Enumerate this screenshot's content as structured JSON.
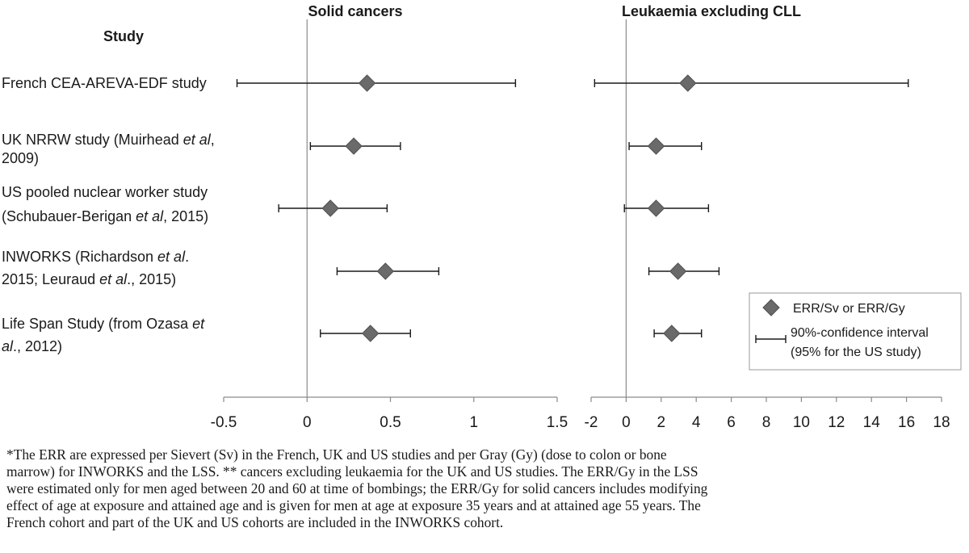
{
  "header": {
    "study_heading": "Study"
  },
  "studies": [
    {
      "lines": [
        "French CEA-AREVA-EDF study"
      ]
    },
    {
      "lines": [
        [
          "UK NRRW study (Muirhead ",
          "et al",
          ","
        ],
        [
          "2009)"
        ]
      ]
    },
    {
      "lines": [
        [
          "US pooled nuclear worker study"
        ],
        [
          "(Schubauer-Berigan ",
          "et al",
          ", 2015)"
        ]
      ]
    },
    {
      "lines": [
        [
          "INWORKS (Richardson ",
          "et al",
          "."
        ],
        [
          "2015; Leuraud ",
          "et al",
          "., 2015)"
        ]
      ]
    },
    {
      "lines": [
        [
          "Life Span Study (from Ozasa ",
          "et",
          ""
        ],
        [
          "",
          "al",
          "., 2012)"
        ]
      ]
    }
  ],
  "legend": {
    "marker_label": "ERR/Sv or ERR/Gy",
    "ci_label_line1": "90%-confidence  interval",
    "ci_label_line2": "(95% for the US study)"
  },
  "chart_data": [
    {
      "type": "forest",
      "title": "Solid cancers",
      "xlim": [
        -0.5,
        1.5
      ],
      "ticks": [
        -0.5,
        0,
        0.5,
        1,
        1.5
      ],
      "tick_labels": [
        "-0.5",
        "0",
        "0.5",
        "1",
        "1.5"
      ],
      "reference_line": 0,
      "points": [
        {
          "study": "French CEA-AREVA-EDF study",
          "estimate": 0.36,
          "lower": -0.42,
          "upper": 1.25
        },
        {
          "study": "UK NRRW study (Muirhead et al, 2009)",
          "estimate": 0.28,
          "lower": 0.02,
          "upper": 0.56
        },
        {
          "study": "US pooled nuclear worker study (Schubauer-Berigan et al, 2015)",
          "estimate": 0.14,
          "lower": -0.17,
          "upper": 0.48
        },
        {
          "study": "INWORKS (Richardson et al. 2015; Leuraud et al., 2015)",
          "estimate": 0.47,
          "lower": 0.18,
          "upper": 0.79
        },
        {
          "study": "Life Span Study (from Ozasa et al., 2012)",
          "estimate": 0.38,
          "lower": 0.08,
          "upper": 0.62
        }
      ]
    },
    {
      "type": "forest",
      "title": "Leukaemia excluding CLL",
      "xlim": [
        -2,
        18
      ],
      "ticks": [
        -2,
        0,
        2,
        4,
        6,
        8,
        10,
        12,
        14,
        16,
        18
      ],
      "tick_labels": [
        "-2",
        "0",
        "2",
        "4",
        "6",
        "8",
        "10",
        "12",
        "14",
        "16",
        "18"
      ],
      "reference_line": 0,
      "points": [
        {
          "study": "French CEA-AREVA-EDF study",
          "estimate": 3.52,
          "lower": -1.8,
          "upper": 16.1
        },
        {
          "study": "UK NRRW study (Muirhead et al, 2009)",
          "estimate": 1.71,
          "lower": 0.17,
          "upper": 4.3
        },
        {
          "study": "US pooled nuclear worker study (Schubauer-Berigan et al, 2015)",
          "estimate": 1.71,
          "lower": -0.1,
          "upper": 4.7
        },
        {
          "study": "INWORKS (Richardson et al. 2015; Leuraud et al., 2015)",
          "estimate": 2.96,
          "lower": 1.3,
          "upper": 5.3
        },
        {
          "study": "Life Span Study (from Ozasa et al., 2012)",
          "estimate": 2.6,
          "lower": 1.6,
          "upper": 4.3
        }
      ]
    }
  ],
  "footnote": [
    "*The ERR are expressed per Sievert (Sv) in the French, UK and US studies and per Gray (Gy) (dose to colon or bone",
    "marrow) for INWORKS and the LSS. ** cancers excluding leukaemia for the UK and US studies. The ERR/Gy in the LSS",
    "were estimated only for men aged between 20 and 60 at time of bombings; the ERR/Gy for solid cancers includes modifying",
    "effect of age at exposure and attained age and is given for men at age at exposure 35 years and at attained age 55 years. The",
    "French cohort and part of the UK and US cohorts are included in the INWORKS cohort."
  ],
  "colors": {
    "marker_fill": "#6a6a6a",
    "marker_stroke": "#4f4f4f",
    "ci_line": "#1a1a1a",
    "axis": "#8a8a8a",
    "reference_line": "#8a8a8a",
    "legend_border": "#9a9a9a",
    "text": "#1a1a1a"
  }
}
